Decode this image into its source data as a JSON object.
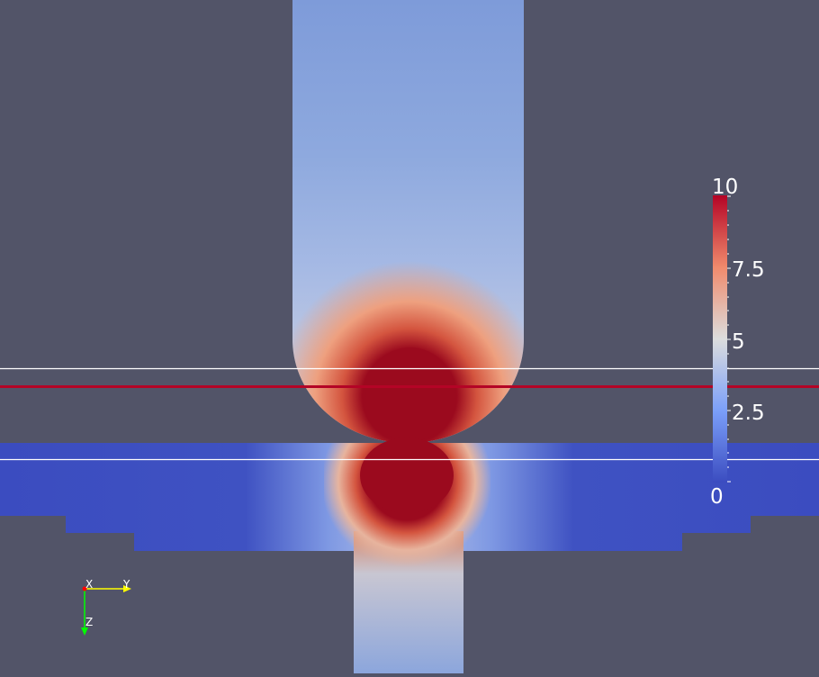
{
  "scene": {
    "background": "#525468",
    "colormap": {
      "low": "#3b4cc0",
      "mid": "#dcdddd",
      "high": "#b40426",
      "saturated": "#9b0a1e"
    },
    "slice_line_color": "#ffffff",
    "probe_line_color": "#b40426"
  },
  "color_legend": {
    "min": 0,
    "max": 10,
    "tick_labels": {
      "max": "10",
      "t75": "7.5",
      "t5": "5",
      "t25": "2.5",
      "min": "0"
    }
  },
  "orientation_axes": {
    "x_label": "X",
    "y_label": "Y",
    "z_label": "Z",
    "colors": {
      "x": "#ff0000",
      "y": "#ffff00",
      "z": "#00ff00"
    }
  }
}
